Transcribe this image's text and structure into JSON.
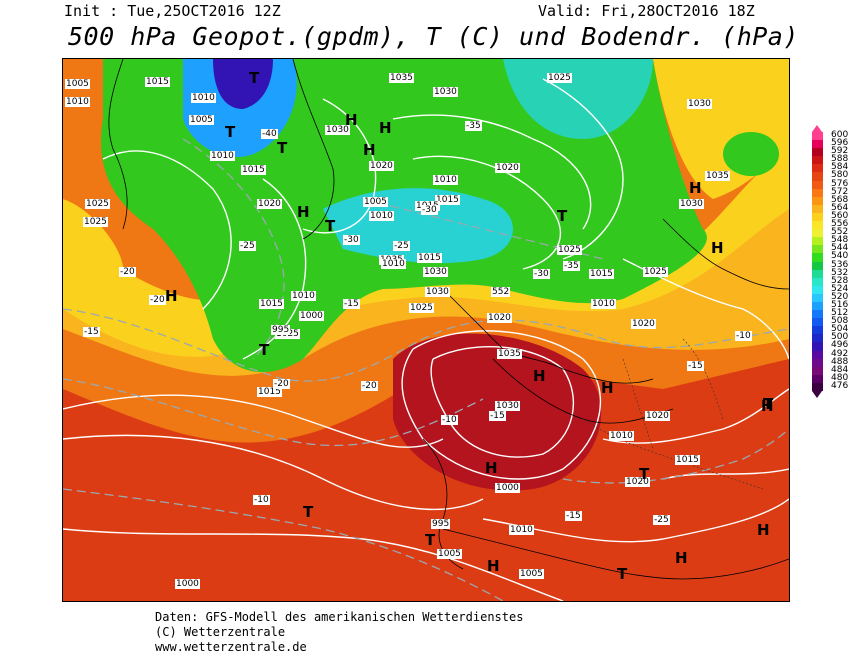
{
  "header": {
    "init": "Init : Tue,25OCT2016 12Z",
    "valid": "Valid: Fri,28OCT2016 18Z",
    "title": "500 hPa Geopot.(gpdm), T (C) und Bodendr. (hPa)"
  },
  "footer": {
    "line1": "Daten: GFS-Modell des amerikanischen Wetterdienstes",
    "line2": "(C) Wetterzentrale",
    "line3": "www.wetterzentrale.de"
  },
  "legend": {
    "values": [
      "600",
      "596",
      "592",
      "588",
      "584",
      "580",
      "576",
      "572",
      "568",
      "564",
      "560",
      "556",
      "552",
      "548",
      "544",
      "540",
      "536",
      "532",
      "528",
      "524",
      "520",
      "516",
      "512",
      "508",
      "504",
      "500",
      "496",
      "492",
      "488",
      "484",
      "480",
      "476"
    ],
    "colors": [
      "#ff3f90",
      "#e6005a",
      "#b4001e",
      "#cc1414",
      "#dc2d14",
      "#e64614",
      "#f05a14",
      "#fa7814",
      "#fa9614",
      "#fab41e",
      "#fad21e",
      "#fae628",
      "#f0f032",
      "#b4f01e",
      "#78e61e",
      "#32dc1e",
      "#14c846",
      "#1edc96",
      "#28e6c8",
      "#32e6f0",
      "#28c8ff",
      "#1ea0ff",
      "#1478fa",
      "#145af0",
      "#143cdc",
      "#1e28c8",
      "#3214b4",
      "#5a0aa0",
      "#6e0a8c",
      "#780a78",
      "#5a0064",
      "#3a0040"
    ]
  },
  "map": {
    "pressure_labels": [
      "1005",
      "1010",
      "1015",
      "1010",
      "1005",
      "1010",
      "1015",
      "1020",
      "1025",
      "1030",
      "1035",
      "1030",
      "1015",
      "1010",
      "1035",
      "1025",
      "1020",
      "1015",
      "1010",
      "995",
      "1000",
      "1005",
      "1010",
      "1015",
      "1020",
      "1025",
      "1030",
      "1035",
      "1030",
      "1020",
      "1025",
      "1030",
      "1025",
      "1015",
      "1010",
      "1035",
      "1030",
      "1020",
      "1010",
      "1015",
      "1020",
      "995",
      "1000",
      "1005",
      "1010",
      "1005",
      "1000",
      "1015",
      "1020",
      "552",
      "1030",
      "1025",
      "1010",
      "1015",
      "1025"
    ],
    "temp_labels": [
      "-40",
      "-35",
      "-30",
      "-25",
      "-20",
      "-15",
      "-10",
      "-15",
      "-10",
      "-15",
      "-20",
      "-25",
      "-30",
      "-35",
      "-30",
      "-25",
      "-20",
      "-15",
      "-10",
      "-15",
      "-20"
    ],
    "highs": [
      "H",
      "H",
      "H",
      "H",
      "H",
      "H",
      "H",
      "H",
      "H",
      "H",
      "H",
      "H",
      "H",
      "H"
    ],
    "lows": [
      "T",
      "T",
      "T",
      "T",
      "T",
      "T",
      "T",
      "T",
      "T",
      "T",
      "T"
    ]
  }
}
